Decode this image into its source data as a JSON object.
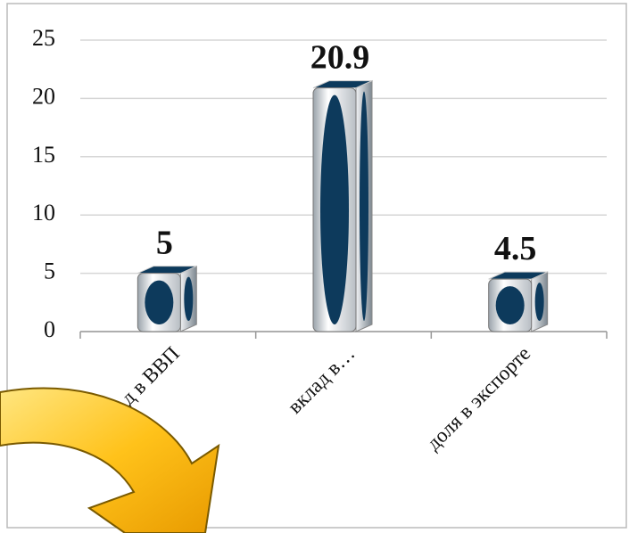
{
  "chart_data": {
    "type": "bar",
    "categories": [
      "д в ВВП",
      "вклад в…",
      "доля в экспорте"
    ],
    "values": [
      5,
      20.9,
      4.5
    ],
    "color": "#0d3a5c",
    "ylim": [
      0,
      25
    ],
    "yticks": [
      0,
      5,
      10,
      15,
      20,
      25
    ],
    "grid": true
  }
}
